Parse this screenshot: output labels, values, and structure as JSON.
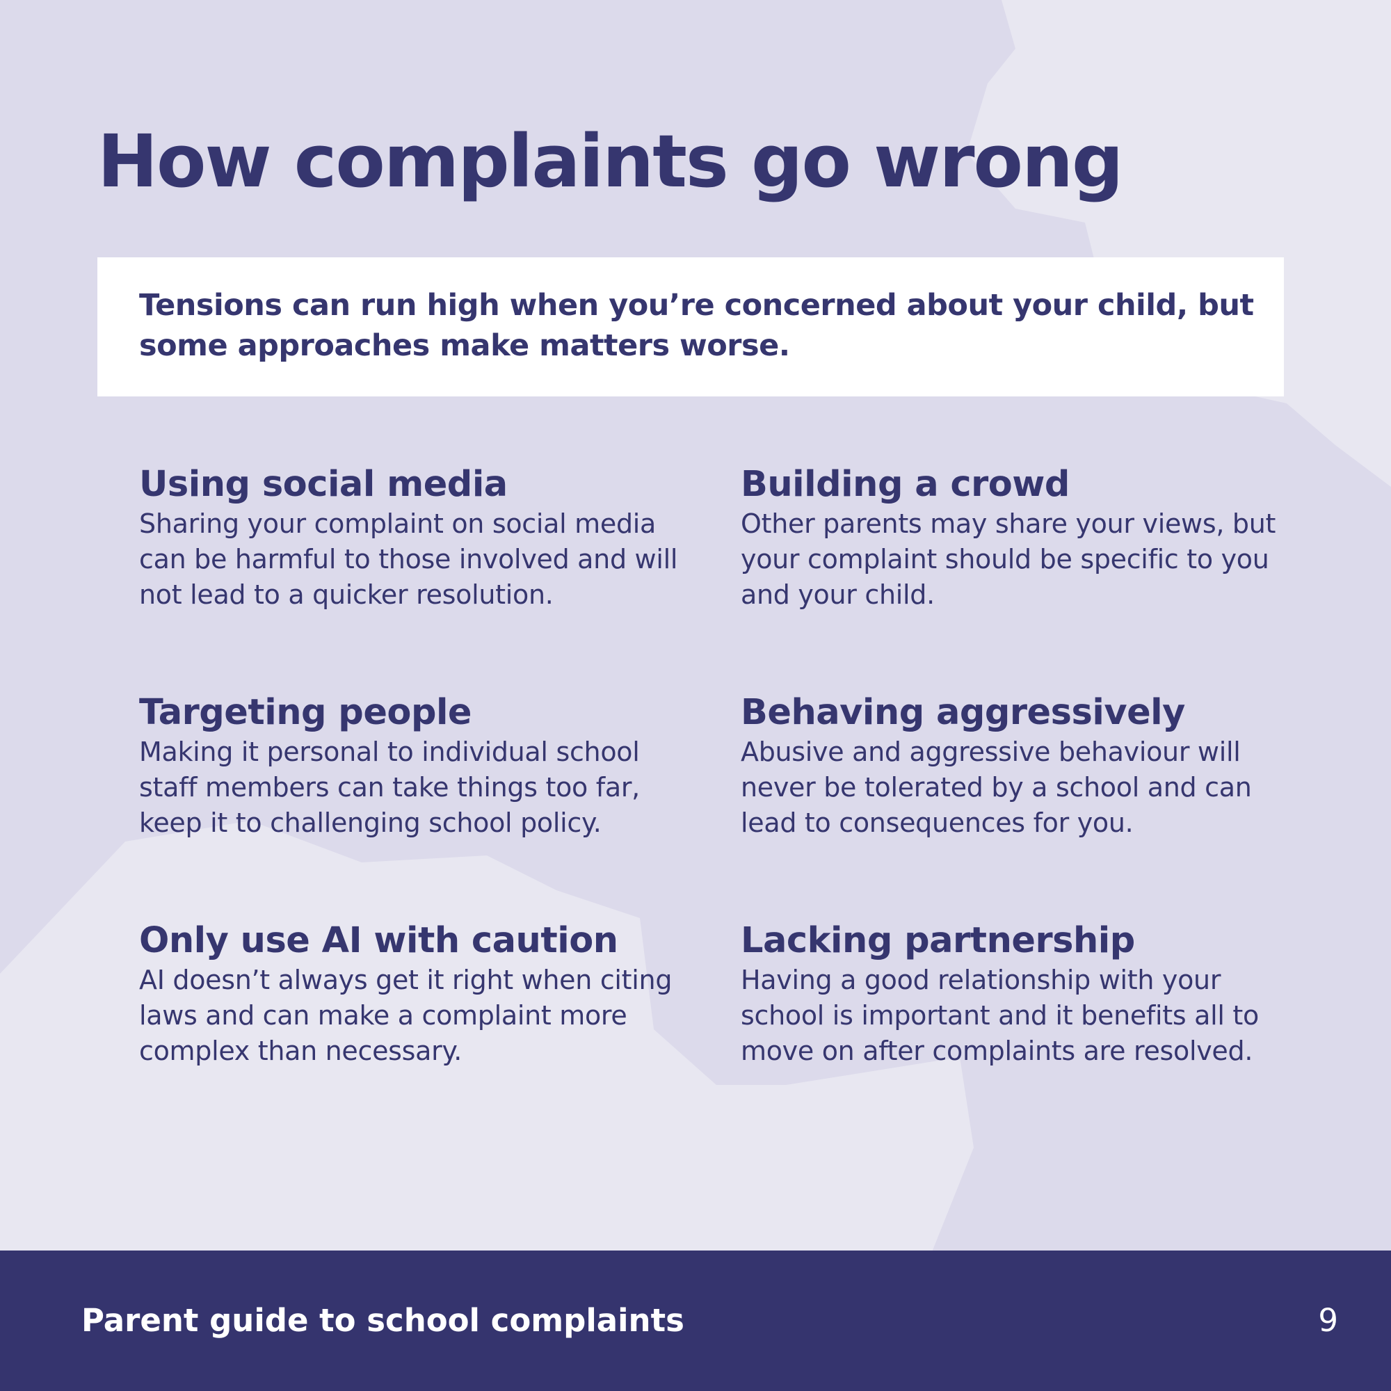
{
  "header": {
    "title": "How complaints go wrong"
  },
  "intro": "Tensions can run high when you’re concerned about your child, but some approaches make matters worse.",
  "items": [
    {
      "heading": "Using social media",
      "body": "Sharing your complaint on social media can be harmful to those involved and will not lead to a quicker resolution."
    },
    {
      "heading": "Building a crowd",
      "body": "Other parents may share your views, but your complaint should be specific to you and your child."
    },
    {
      "heading": "Targeting people",
      "body": "Making it personal to individual school staff members can take things too far, keep it to challenging school policy."
    },
    {
      "heading": "Behaving aggressively",
      "body": "Abusive and aggressive behaviour will never be tolerated by a school and can lead to consequences for you."
    },
    {
      "heading": "Only use AI with caution",
      "body": "AI doesn’t always get it right when citing laws and can make a complaint more complex than necessary."
    },
    {
      "heading": "Lacking partnership",
      "body": "Having a good relationship with your school is important and it benefits all to move on after complaints are resolved."
    }
  ],
  "footer": {
    "title": "Parent guide to school complaints",
    "page": "9"
  }
}
